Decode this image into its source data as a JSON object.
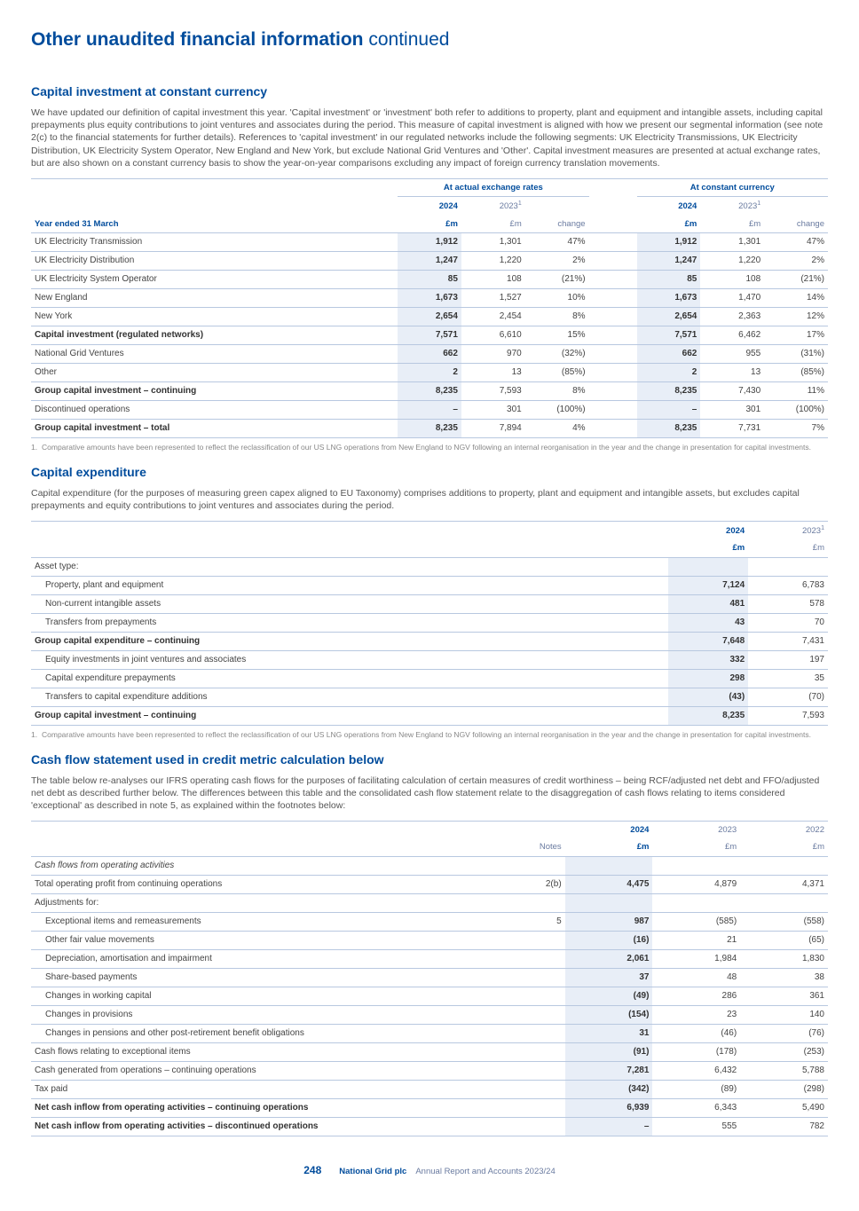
{
  "page": {
    "title_main": "Other unaudited financial information",
    "title_cont": " continued",
    "page_number": "248",
    "footer_company": "National Grid plc",
    "footer_doc": "Annual Report and Accounts 2023/24"
  },
  "s1": {
    "heading": "Capital investment at constant currency",
    "para": "We have updated our definition of capital investment this year. 'Capital investment' or 'investment' both refer to additions to property, plant and equipment and intangible assets, including capital prepayments plus equity contributions to joint ventures and associates during the period. This measure of capital investment is aligned with how we present our segmental information (see note 2(c) to the financial statements for further details). References to 'capital investment' in our regulated networks include the following segments: UK Electricity Transmissions, UK Electricity Distribution, UK Electricity System Operator, New England and New York, but exclude National Grid Ventures and 'Other'. Capital investment measures are presented at actual exchange rates, but are also shown on a constant currency basis to show the year-on-year comparisons excluding any impact of foreign currency translation movements.",
    "group1": "At actual exchange rates",
    "group2": "At constant currency",
    "col_yr": "Year ended 31 March",
    "c2024": "2024",
    "c2023": "2023",
    "unit": "£m",
    "change": "change",
    "rows": [
      {
        "l": "UK Electricity Transmission",
        "a1": "1,912",
        "a2": "1,301",
        "a3": "47%",
        "b1": "1,912",
        "b2": "1,301",
        "b3": "47%"
      },
      {
        "l": "UK Electricity Distribution",
        "a1": "1,247",
        "a2": "1,220",
        "a3": "2%",
        "b1": "1,247",
        "b2": "1,220",
        "b3": "2%"
      },
      {
        "l": "UK Electricity System Operator",
        "a1": "85",
        "a2": "108",
        "a3": "(21%)",
        "b1": "85",
        "b2": "108",
        "b3": "(21%)"
      },
      {
        "l": "New England",
        "a1": "1,673",
        "a2": "1,527",
        "a3": "10%",
        "b1": "1,673",
        "b2": "1,470",
        "b3": "14%"
      },
      {
        "l": "New York",
        "a1": "2,654",
        "a2": "2,454",
        "a3": "8%",
        "b1": "2,654",
        "b2": "2,363",
        "b3": "12%"
      }
    ],
    "sub1": {
      "l": "Capital investment (regulated networks)",
      "a1": "7,571",
      "a2": "6,610",
      "a3": "15%",
      "b1": "7,571",
      "b2": "6,462",
      "b3": "17%"
    },
    "rows2": [
      {
        "l": "National Grid Ventures",
        "a1": "662",
        "a2": "970",
        "a3": "(32%)",
        "b1": "662",
        "b2": "955",
        "b3": "(31%)"
      },
      {
        "l": "Other",
        "a1": "2",
        "a2": "13",
        "a3": "(85%)",
        "b1": "2",
        "b2": "13",
        "b3": "(85%)"
      }
    ],
    "sub2": {
      "l": "Group capital investment – continuing",
      "a1": "8,235",
      "a2": "7,593",
      "a3": "8%",
      "b1": "8,235",
      "b2": "7,430",
      "b3": "11%"
    },
    "rows3": [
      {
        "l": "Discontinued operations",
        "a1": "–",
        "a2": "301",
        "a3": "(100%)",
        "b1": "–",
        "b2": "301",
        "b3": "(100%)"
      }
    ],
    "total": {
      "l": "Group capital investment – total",
      "a1": "8,235",
      "a2": "7,894",
      "a3": "4%",
      "b1": "8,235",
      "b2": "7,731",
      "b3": "7%"
    },
    "footnote": "Comparative amounts have been represented to reflect the reclassification of our US LNG operations from New England to NGV following an internal reorganisation in the year and the change in presentation for capital investments."
  },
  "s2": {
    "heading": "Capital expenditure",
    "para": "Capital expenditure (for the purposes of measuring green capex aligned to EU Taxonomy) comprises additions to property, plant and equipment and intangible assets, but excludes capital prepayments and equity contributions to joint ventures and associates during the period.",
    "c2024": "2024",
    "c2023": "2023",
    "unit": "£m",
    "asset_type": "Asset type:",
    "rows": [
      {
        "l": "Property, plant and equipment",
        "a": "7,124",
        "b": "6,783"
      },
      {
        "l": "Non-current intangible assets",
        "a": "481",
        "b": "578"
      },
      {
        "l": "Transfers from prepayments",
        "a": "43",
        "b": "70"
      }
    ],
    "sub1": {
      "l": "Group capital expenditure – continuing",
      "a": "7,648",
      "b": "7,431"
    },
    "rows2": [
      {
        "l": "Equity investments in joint ventures and associates",
        "a": "332",
        "b": "197"
      },
      {
        "l": "Capital expenditure prepayments",
        "a": "298",
        "b": "35"
      },
      {
        "l": "Transfers to capital expenditure additions",
        "a": "(43)",
        "b": "(70)"
      }
    ],
    "total": {
      "l": "Group capital investment – continuing",
      "a": "8,235",
      "b": "7,593"
    },
    "footnote": "Comparative amounts have been represented to reflect the reclassification of our US LNG operations from New England to NGV following an internal reorganisation in the year and the change in presentation for capital investments."
  },
  "s3": {
    "heading": "Cash flow statement used in credit metric calculation below",
    "para": "The table below re-analyses our IFRS operating cash flows for the purposes of facilitating calculation of certain measures of credit worthiness – being RCF/adjusted net debt and FFO/adjusted net debt as described further below. The differences between this table and the consolidated cash flow statement relate to the disaggregation of cash flows relating to items considered 'exceptional' as described in note 5, as explained within the footnotes below:",
    "notes": "Notes",
    "c2024": "2024",
    "c2023": "2023",
    "c2022": "2022",
    "unit": "£m",
    "cfoa": "Cash flows from operating activities",
    "r1": {
      "l": "Total operating profit from continuing operations",
      "n": "2(b)",
      "a": "4,475",
      "b": "4,879",
      "c": "4,371"
    },
    "adj": "Adjustments for:",
    "rows": [
      {
        "l": "Exceptional items and remeasurements",
        "n": "5",
        "a": "987",
        "b": "(585)",
        "c": "(558)"
      },
      {
        "l": "Other fair value movements",
        "n": "",
        "a": "(16)",
        "b": "21",
        "c": "(65)"
      },
      {
        "l": "Depreciation, amortisation and impairment",
        "n": "",
        "a": "2,061",
        "b": "1,984",
        "c": "1,830"
      },
      {
        "l": "Share-based payments",
        "n": "",
        "a": "37",
        "b": "48",
        "c": "38"
      },
      {
        "l": "Changes in working capital",
        "n": "",
        "a": "(49)",
        "b": "286",
        "c": "361"
      },
      {
        "l": "Changes in provisions",
        "n": "",
        "a": "(154)",
        "b": "23",
        "c": "140"
      },
      {
        "l": "Changes in pensions and other post-retirement benefit obligations",
        "n": "",
        "a": "31",
        "b": "(46)",
        "c": "(76)"
      }
    ],
    "r2": {
      "l": "Cash flows relating to exceptional items",
      "a": "(91)",
      "b": "(178)",
      "c": "(253)"
    },
    "r3": {
      "l": "Cash generated from operations – continuing operations",
      "a": "7,281",
      "b": "6,432",
      "c": "5,788"
    },
    "r4": {
      "l": "Tax paid",
      "a": "(342)",
      "b": "(89)",
      "c": "(298)"
    },
    "r5": {
      "l": "Net cash inflow from operating activities – continuing operations",
      "a": "6,939",
      "b": "6,343",
      "c": "5,490"
    },
    "r6": {
      "l": "Net cash inflow from operating activities – discontinued operations",
      "a": "–",
      "b": "555",
      "c": "782"
    }
  }
}
